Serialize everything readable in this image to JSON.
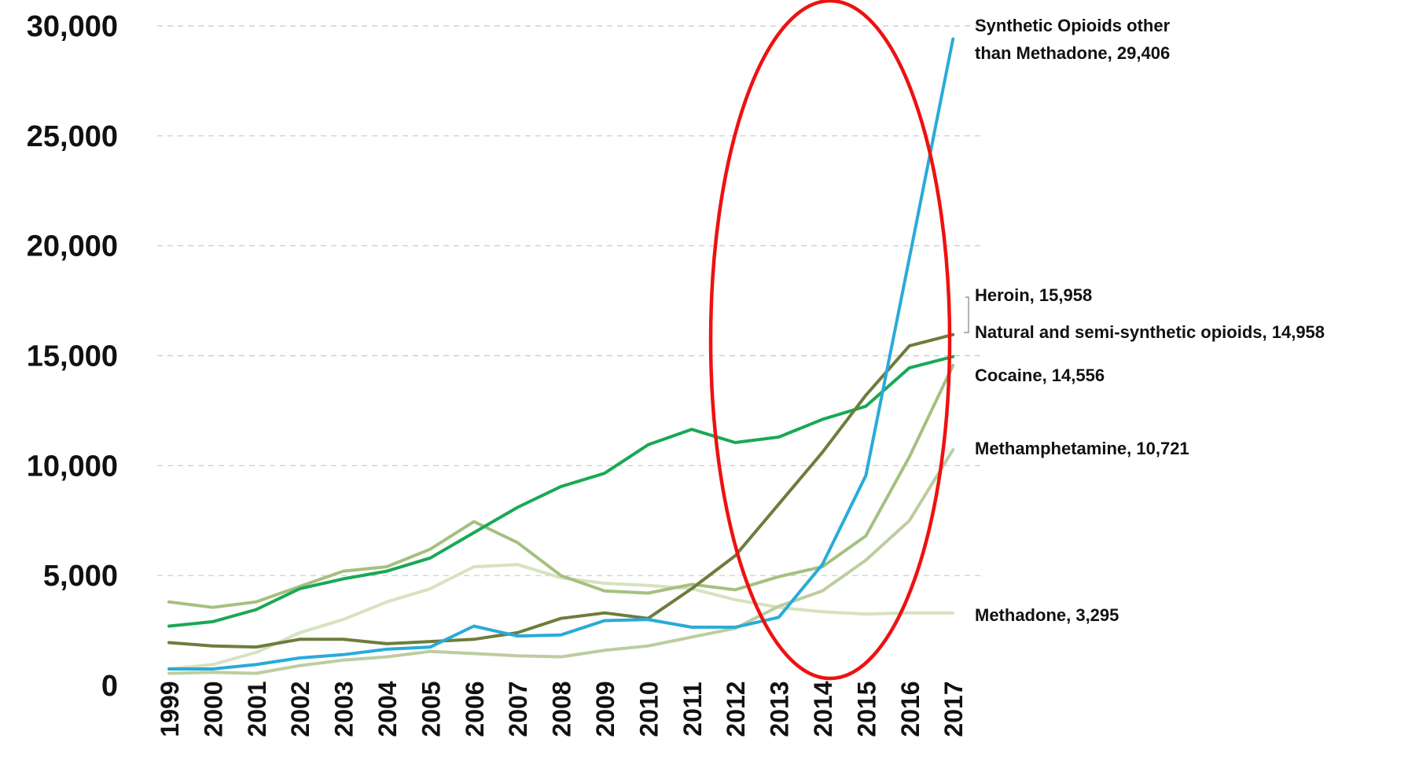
{
  "chart_data": {
    "type": "line",
    "title": "",
    "xlabel": "",
    "ylabel": "",
    "x": [
      "1999",
      "2000",
      "2001",
      "2002",
      "2003",
      "2004",
      "2005",
      "2006",
      "2007",
      "2008",
      "2009",
      "2010",
      "2011",
      "2012",
      "2013",
      "2014",
      "2015",
      "2016",
      "2017"
    ],
    "ylim": [
      0,
      30000
    ],
    "yticks": [
      0,
      5000,
      10000,
      15000,
      20000,
      25000,
      30000
    ],
    "ytick_labels": [
      "0",
      "5,000",
      "10,000",
      "15,000",
      "20,000",
      "25,000",
      "30,000"
    ],
    "grid": "horizontal-dashed",
    "legend": "none",
    "series": [
      {
        "name": "Methadone",
        "label": "Methadone, 3,295",
        "color": "#d6e2c0",
        "values": [
          750,
          950,
          1500,
          2400,
          3000,
          3800,
          4400,
          5400,
          5500,
          4900,
          4650,
          4550,
          4400,
          3900,
          3550,
          3350,
          3250,
          3300,
          3295
        ]
      },
      {
        "name": "Methamphetamine",
        "label": "Methamphetamine, 10,721",
        "color": "#bccd9f",
        "values": [
          550,
          600,
          550,
          900,
          1150,
          1300,
          1550,
          1450,
          1350,
          1300,
          1600,
          1800,
          2200,
          2600,
          3600,
          4300,
          5700,
          7500,
          10721
        ]
      },
      {
        "name": "Cocaine",
        "label": "Cocaine, 14,556",
        "color": "#a5c07f",
        "values": [
          3800,
          3550,
          3800,
          4500,
          5200,
          5400,
          6200,
          7450,
          6500,
          5000,
          4300,
          4200,
          4600,
          4350,
          4950,
          5400,
          6800,
          10400,
          14556
        ]
      },
      {
        "name": "Natural and semi-synthetic opioids",
        "label": "Natural and semi-synthetic opioids, 14,958",
        "color": "#1aa855",
        "values": [
          2700,
          2900,
          3450,
          4400,
          4850,
          5200,
          5800,
          6950,
          8100,
          9050,
          9650,
          10950,
          11650,
          11050,
          11300,
          12100,
          12700,
          14450,
          14958
        ]
      },
      {
        "name": "Heroin",
        "label": "Heroin, 15,958",
        "color": "#6c7d3c",
        "values": [
          1950,
          1800,
          1750,
          2100,
          2100,
          1900,
          2000,
          2100,
          2400,
          3050,
          3300,
          3050,
          4400,
          5900,
          8250,
          10600,
          13200,
          15450,
          15958
        ]
      },
      {
        "name": "Synthetic Opioids other than Methadone",
        "label": "Synthetic Opioids other than Methadone, 29,406",
        "label_lines": [
          "Synthetic Opioids other",
          "than Methadone, 29,406"
        ],
        "color": "#29abd8",
        "values": [
          750,
          750,
          950,
          1250,
          1400,
          1650,
          1750,
          2700,
          2250,
          2300,
          2950,
          3000,
          2650,
          2650,
          3100,
          5500,
          9550,
          19450,
          29406
        ]
      }
    ],
    "annotations": [
      {
        "type": "ellipse",
        "color": "#ee1111",
        "around_x": [
          "2012",
          "2016"
        ],
        "y_range": [
          0,
          30000
        ]
      }
    ]
  }
}
